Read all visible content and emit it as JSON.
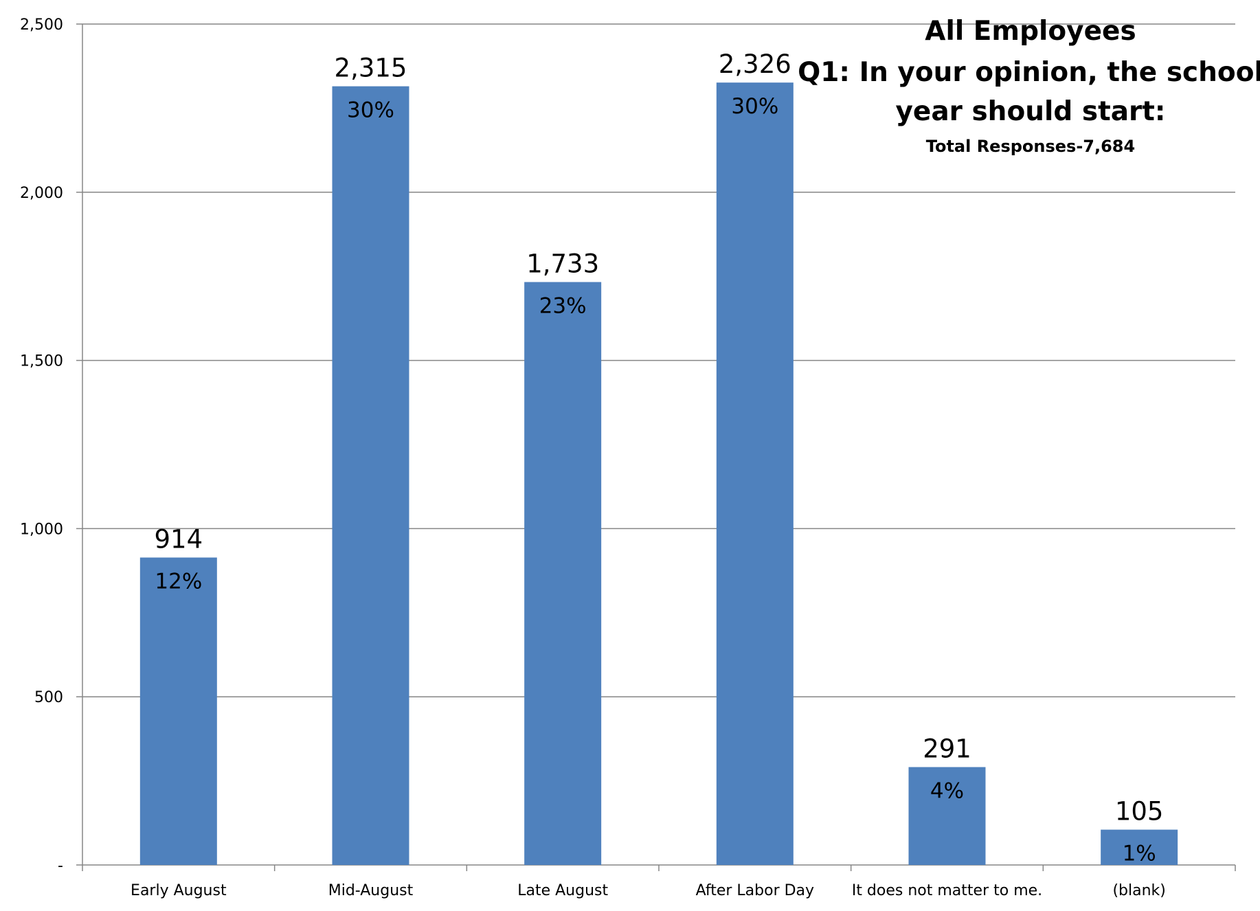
{
  "chart_data": {
    "type": "bar",
    "title": "All Employees",
    "subtitle": "Q1: In your opinion, the school year should start:",
    "note": "Total Responses-7,684",
    "categories": [
      "Early August",
      "Mid-August",
      "Late August",
      "After Labor Day",
      "It does not matter to me.",
      "(blank)"
    ],
    "values": [
      914,
      2315,
      1733,
      2326,
      291,
      105
    ],
    "value_labels": [
      "914",
      "2,315",
      "1,733",
      "2,326",
      "291",
      "105"
    ],
    "percent_labels": [
      "12%",
      "30%",
      "23%",
      "30%",
      "4%",
      "1%"
    ],
    "ylim": [
      0,
      2500
    ],
    "y_ticks": [
      {
        "value": 0,
        "label": "-"
      },
      {
        "value": 500,
        "label": "500"
      },
      {
        "value": 1000,
        "label": "1,000"
      },
      {
        "value": 1500,
        "label": "1,500"
      },
      {
        "value": 2000,
        "label": "2,000"
      },
      {
        "value": 2500,
        "label": "2,500"
      }
    ],
    "grid": true,
    "colors": {
      "bar": "#4f81bd",
      "grid": "#868686",
      "axis": "#868686",
      "text": "#000000"
    }
  }
}
